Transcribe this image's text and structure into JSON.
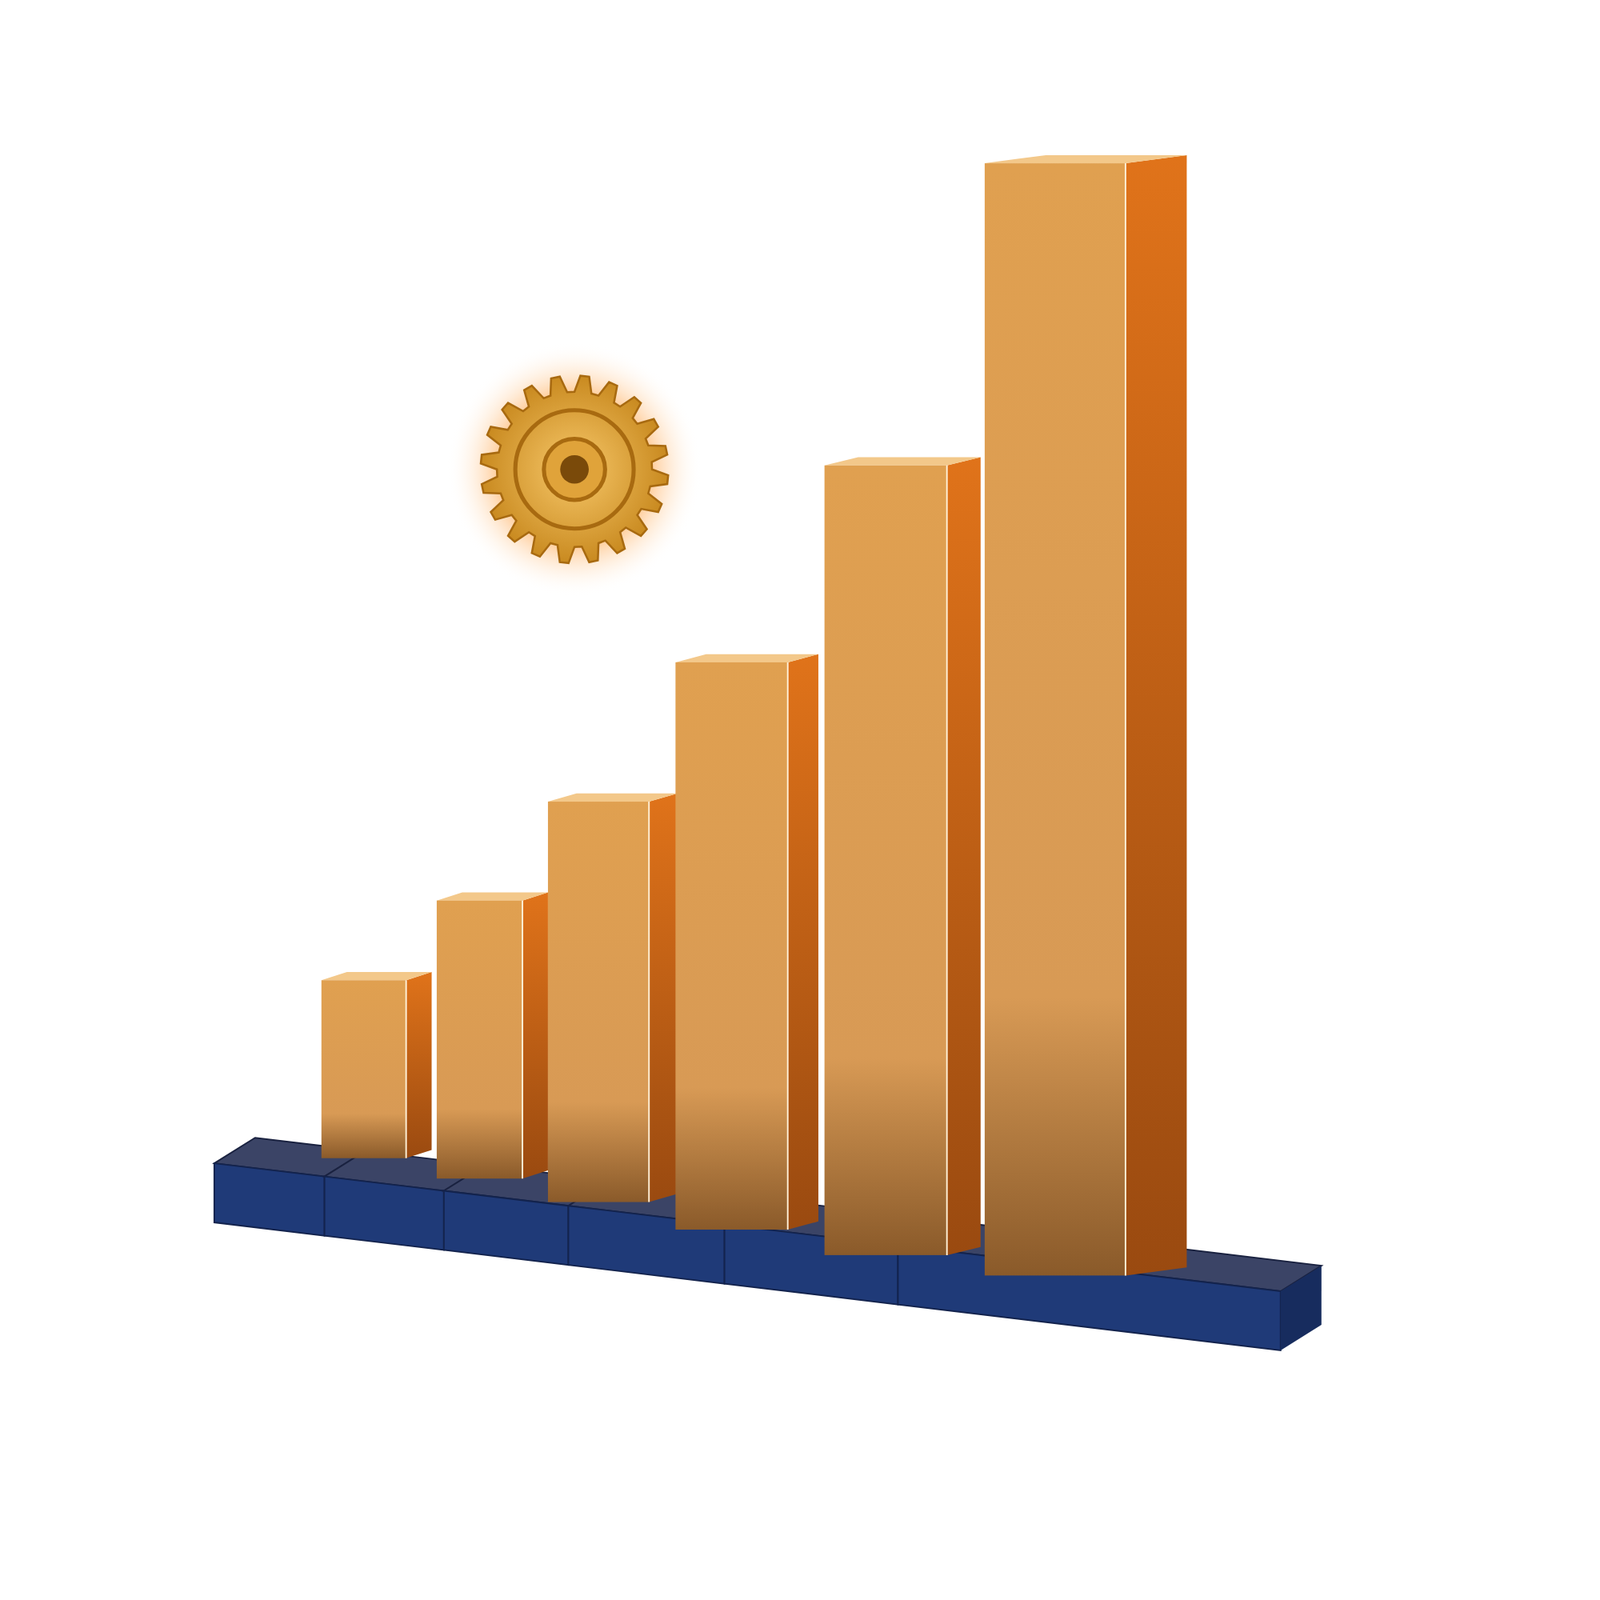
{
  "chart_data": {
    "type": "bar",
    "categories": [
      null,
      null,
      null,
      null,
      null,
      null
    ],
    "values": [
      16,
      25,
      36,
      51,
      71,
      100
    ],
    "color": "#e0a050",
    "ylim": [
      0,
      100
    ],
    "tick_labels": false
  }
}
